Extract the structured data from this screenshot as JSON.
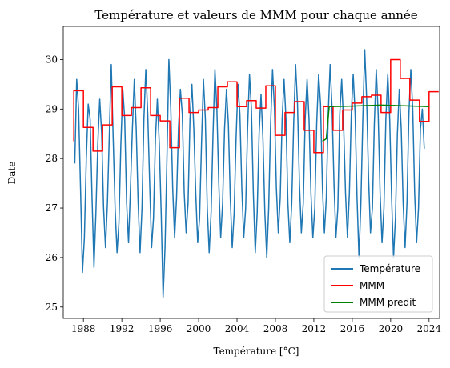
{
  "chart_data": {
    "type": "line",
    "title": "Température et valeurs de MMM pour chaque année",
    "xlabel": "Température [°C]",
    "ylabel": "Date",
    "xlim": [
      1985.9,
      2025.1
    ],
    "ylim": [
      24.77,
      30.67
    ],
    "x_ticks": [
      1988,
      1992,
      1996,
      2000,
      2004,
      2008,
      2012,
      2016,
      2020,
      2024
    ],
    "y_ticks": [
      25,
      26,
      27,
      28,
      29,
      30
    ],
    "legend_position": "lower-right",
    "series": [
      {
        "name": "Température",
        "color": "#1f77b4",
        "kind": "line",
        "x_start": 1987.1,
        "x_step": 0.2,
        "values": [
          27.9,
          29.6,
          29.0,
          27.4,
          25.7,
          26.4,
          28.0,
          29.1,
          28.8,
          27.2,
          25.8,
          26.9,
          28.3,
          29.2,
          28.5,
          27.0,
          26.2,
          27.1,
          28.5,
          29.9,
          28.4,
          27.0,
          26.1,
          26.7,
          28.3,
          29.4,
          28.8,
          27.1,
          26.3,
          27.4,
          28.6,
          29.6,
          28.6,
          27.1,
          26.1,
          27.0,
          28.8,
          29.8,
          28.9,
          27.5,
          26.2,
          26.8,
          28.4,
          29.2,
          28.3,
          26.9,
          25.2,
          26.2,
          28.0,
          30.0,
          29.0,
          27.4,
          26.4,
          27.2,
          28.6,
          29.4,
          28.9,
          27.3,
          26.5,
          27.1,
          28.8,
          29.5,
          28.6,
          27.3,
          26.3,
          26.8,
          28.3,
          29.6,
          28.8,
          27.0,
          26.1,
          26.9,
          28.5,
          29.8,
          29.0,
          27.5,
          26.4,
          27.1,
          28.6,
          29.4,
          28.7,
          27.2,
          26.2,
          26.9,
          28.4,
          29.5,
          28.9,
          27.4,
          26.4,
          27.0,
          28.6,
          29.7,
          29.0,
          27.3,
          26.1,
          26.9,
          28.5,
          29.3,
          28.4,
          26.9,
          26.0,
          27.0,
          28.7,
          29.8,
          29.0,
          27.4,
          26.5,
          27.2,
          28.8,
          29.6,
          28.8,
          27.1,
          26.3,
          27.1,
          28.7,
          29.9,
          29.1,
          27.5,
          26.5,
          27.1,
          28.8,
          29.6,
          28.8,
          27.3,
          26.4,
          27.0,
          28.7,
          29.7,
          29.1,
          27.4,
          26.5,
          27.2,
          28.9,
          29.9,
          29.0,
          27.5,
          26.4,
          27.0,
          28.9,
          29.6,
          28.7,
          27.3,
          26.4,
          27.3,
          28.9,
          29.7,
          28.9,
          27.2,
          26.0,
          27.1,
          28.8,
          30.2,
          29.2,
          27.6,
          26.5,
          27.0,
          28.7,
          29.8,
          28.9,
          27.3,
          26.3,
          27.0,
          28.8,
          29.7,
          28.8,
          27.2,
          26.0,
          26.8,
          28.5,
          29.4,
          28.6,
          27.1,
          26.2,
          27.1,
          28.9,
          29.8,
          29.0,
          27.3,
          26.3,
          27.0,
          28.6,
          29.0,
          28.2
        ]
      },
      {
        "name": "MMM",
        "color": "#ff0000",
        "kind": "step",
        "x_start": 1987.0,
        "x_step": 1,
        "values": [
          29.37,
          28.63,
          28.15,
          28.68,
          29.45,
          28.87,
          29.03,
          29.43,
          28.87,
          28.76,
          28.22,
          29.22,
          28.93,
          28.98,
          29.03,
          29.45,
          29.55,
          29.05,
          29.17,
          29.02,
          29.47,
          28.47,
          28.93,
          29.15,
          28.57,
          28.12,
          29.05,
          28.57,
          28.98,
          29.12,
          29.25,
          29.28,
          28.93,
          30.0,
          29.62,
          29.18,
          28.75,
          29.35
        ],
        "start_value": 28.35
      },
      {
        "name": "MMM predit",
        "color": "#008000",
        "kind": "line",
        "x": [
          2012.9,
          2013.3,
          2013.6,
          2016.0,
          2019.0,
          2024.0
        ],
        "values": [
          28.35,
          28.4,
          29.05,
          29.06,
          29.08,
          29.05
        ]
      }
    ]
  }
}
